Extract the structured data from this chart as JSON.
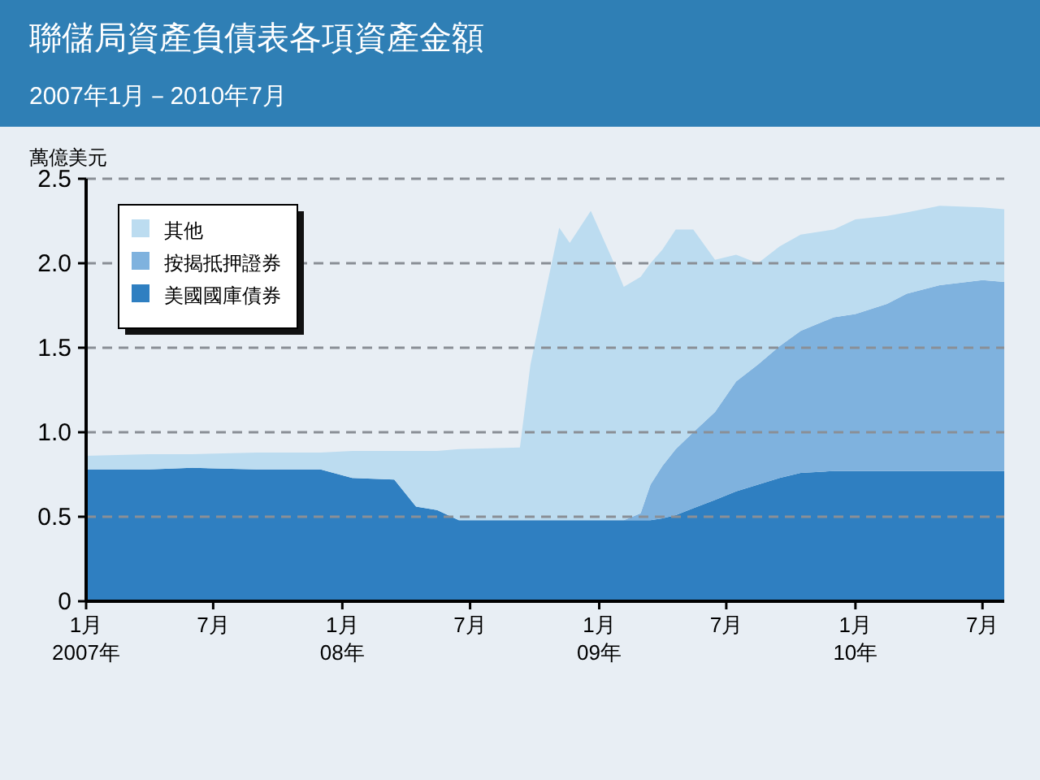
{
  "chart_data": {
    "type": "area",
    "stacked": true,
    "title": "聯儲局資產負債表各項資產金額",
    "subtitle": "2007年1月－2010年7月",
    "ylabel": "萬億美元",
    "x": [
      "2007-01-01",
      "2007-04-01",
      "2007-06-01",
      "2007-09-01",
      "2007-12-01",
      "2008-01-15",
      "2008-03-15",
      "2008-04-15",
      "2008-05-15",
      "2008-06-15",
      "2008-09-10",
      "2008-09-25",
      "2008-10-15",
      "2008-11-05",
      "2008-11-20",
      "2008-12-20",
      "2009-01-20",
      "2009-02-05",
      "2009-03-01",
      "2009-03-15",
      "2009-04-01",
      "2009-04-20",
      "2009-05-15",
      "2009-06-15",
      "2009-07-15",
      "2009-08-15",
      "2009-09-15",
      "2009-10-15",
      "2009-12-01",
      "2010-01-01",
      "2010-02-15",
      "2010-03-15",
      "2010-05-01",
      "2010-07-01",
      "2010-08-01"
    ],
    "series": [
      {
        "name": "美國國庫債券",
        "color": "#2f7fc1",
        "values": [
          0.78,
          0.78,
          0.79,
          0.78,
          0.78,
          0.73,
          0.72,
          0.56,
          0.54,
          0.48,
          0.48,
          0.48,
          0.48,
          0.48,
          0.48,
          0.48,
          0.48,
          0.48,
          0.48,
          0.48,
          0.49,
          0.51,
          0.55,
          0.6,
          0.65,
          0.69,
          0.73,
          0.76,
          0.77,
          0.77,
          0.77,
          0.77,
          0.77,
          0.77,
          0.77
        ]
      },
      {
        "name": "按揭抵押證券",
        "color": "#7fb2de",
        "values": [
          0,
          0,
          0,
          0,
          0,
          0,
          0,
          0,
          0,
          0,
          0,
          0,
          0,
          0,
          0,
          0,
          0,
          0,
          0.04,
          0.21,
          0.31,
          0.39,
          0.45,
          0.52,
          0.65,
          0.71,
          0.78,
          0.84,
          0.91,
          0.93,
          0.99,
          1.05,
          1.1,
          1.13,
          1.12
        ]
      },
      {
        "name": "其他",
        "color": "#bcdcf0",
        "values": [
          0.08,
          0.09,
          0.08,
          0.1,
          0.1,
          0.16,
          0.17,
          0.33,
          0.35,
          0.42,
          0.43,
          0.92,
          1.32,
          1.73,
          1.64,
          1.83,
          1.54,
          1.38,
          1.4,
          1.31,
          1.28,
          1.3,
          1.2,
          0.9,
          0.75,
          0.6,
          0.59,
          0.57,
          0.52,
          0.56,
          0.52,
          0.48,
          0.47,
          0.43,
          0.43
        ]
      }
    ],
    "xlim": [
      "2007-01-01",
      "2010-08-01"
    ],
    "xticks": [
      {
        "value": "2007-01-01",
        "label": "1月\n2007年"
      },
      {
        "value": "2007-07-01",
        "label": "7月"
      },
      {
        "value": "2008-01-01",
        "label": "1月\n08年"
      },
      {
        "value": "2008-07-01",
        "label": "7月"
      },
      {
        "value": "2009-01-01",
        "label": "1月\n09年"
      },
      {
        "value": "2009-07-01",
        "label": "7月"
      },
      {
        "value": "2010-01-01",
        "label": "1月\n10年"
      },
      {
        "value": "2010-07-01",
        "label": "7月"
      }
    ],
    "ylim": [
      0,
      2.5
    ],
    "yticks": [
      {
        "value": 0,
        "label": "0"
      },
      {
        "value": 0.5,
        "label": "0.5"
      },
      {
        "value": 1,
        "label": "1.0"
      },
      {
        "value": 1.5,
        "label": "1.5"
      },
      {
        "value": 2,
        "label": "2.0"
      },
      {
        "value": 2.5,
        "label": "2.5"
      }
    ],
    "grid": "y",
    "legend": "top left"
  }
}
